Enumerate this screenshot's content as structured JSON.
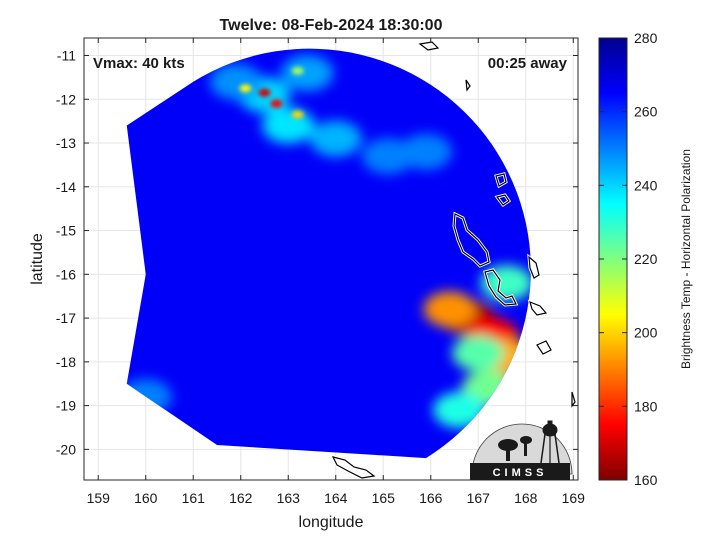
{
  "chart_data": {
    "type": "heatmap",
    "title": "Twelve: 08-Feb-2024 18:30:00",
    "xlabel": "longitude",
    "ylabel": "latitude",
    "xlim": [
      158.7,
      169.1
    ],
    "ylim": [
      -20.7,
      -10.6
    ],
    "x_ticks": [
      159,
      160,
      161,
      162,
      163,
      164,
      165,
      166,
      167,
      168,
      169
    ],
    "y_ticks": [
      -11,
      -12,
      -13,
      -14,
      -15,
      -16,
      -17,
      -18,
      -19,
      -20
    ],
    "grid": true,
    "annotations": {
      "left": "Vmax: 40 kts",
      "right": "00:25 away"
    },
    "colorbar": {
      "label": "Brightness Temp - Horizontal Polarization",
      "range": [
        160,
        280
      ],
      "ticks": [
        160,
        180,
        200,
        220,
        240,
        260,
        280
      ],
      "colors": [
        "#7f0000",
        "#ff0000",
        "#ff8000",
        "#ffff00",
        "#80ff80",
        "#00ffff",
        "#0080ff",
        "#0000ff",
        "#00008f"
      ]
    },
    "swath": {
      "background_value": 266,
      "features": [
        {
          "lon": 166.8,
          "lat": -17.0,
          "value": 165
        },
        {
          "lon": 167.3,
          "lat": -17.4,
          "value": 175
        },
        {
          "lon": 167.6,
          "lat": -17.9,
          "value": 195
        },
        {
          "lon": 166.4,
          "lat": -16.8,
          "value": 192
        },
        {
          "lon": 167.6,
          "lat": -16.2,
          "value": 228
        },
        {
          "lon": 167.2,
          "lat": -18.6,
          "value": 222
        },
        {
          "lon": 166.6,
          "lat": -19.1,
          "value": 232
        },
        {
          "lon": 162.5,
          "lat": -11.9,
          "value": 240
        },
        {
          "lon": 163.0,
          "lat": -12.6,
          "value": 238
        },
        {
          "lon": 164.0,
          "lat": -12.9,
          "value": 244
        },
        {
          "lon": 165.1,
          "lat": -13.3,
          "value": 250
        },
        {
          "lon": 161.9,
          "lat": -11.6,
          "value": 248
        },
        {
          "lon": 163.4,
          "lat": -11.4,
          "value": 246
        },
        {
          "lon": 160.0,
          "lat": -18.8,
          "value": 250
        },
        {
          "lon": 167.0,
          "lat": -17.8,
          "value": 225
        },
        {
          "lon": 165.9,
          "lat": -13.2,
          "value": 250
        }
      ],
      "hot_spots": [
        {
          "lon": 162.5,
          "lat": -11.85,
          "value": 170
        },
        {
          "lon": 162.75,
          "lat": -12.1,
          "value": 175
        },
        {
          "lon": 163.2,
          "lat": -12.35,
          "value": 200
        },
        {
          "lon": 162.1,
          "lat": -11.75,
          "value": 205
        },
        {
          "lon": 163.2,
          "lat": -11.35,
          "value": 215
        }
      ]
    }
  },
  "logo": {
    "text": "CIMSS"
  }
}
